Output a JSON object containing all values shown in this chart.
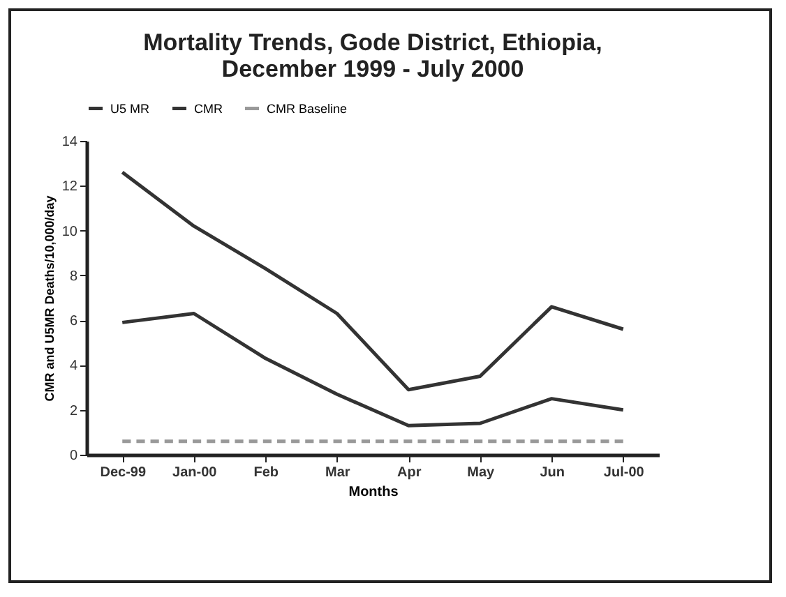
{
  "chart_data": {
    "type": "line",
    "title": "Mortality Trends, Gode District, Ethiopia, December 1999 - July 2000",
    "xlabel": "Months",
    "ylabel": "CMR and U5MR Deaths/10,000/day",
    "categories": [
      "Dec-99",
      "Jan-00",
      "Feb",
      "Mar",
      "Apr",
      "May",
      "Jun",
      "Jul-00"
    ],
    "series": [
      {
        "name": "U5 MR",
        "color": "#333333",
        "values": [
          12.6,
          10.2,
          8.3,
          6.3,
          2.9,
          3.5,
          6.6,
          5.6
        ]
      },
      {
        "name": "CMR",
        "color": "#333333",
        "values": [
          5.9,
          6.3,
          4.3,
          2.7,
          1.3,
          1.4,
          2.5,
          2.0
        ]
      },
      {
        "name": "CMR Baseline",
        "color": "#999999",
        "line_style": "dashed",
        "values": [
          0.6,
          0.6,
          0.6,
          0.6,
          0.6,
          0.6,
          0.6,
          0.6
        ]
      }
    ],
    "ylim": [
      0,
      14
    ],
    "yticks": [
      0,
      2,
      4,
      6,
      8,
      10,
      12,
      14
    ],
    "grid": false,
    "legend": "top",
    "marker": "none"
  }
}
